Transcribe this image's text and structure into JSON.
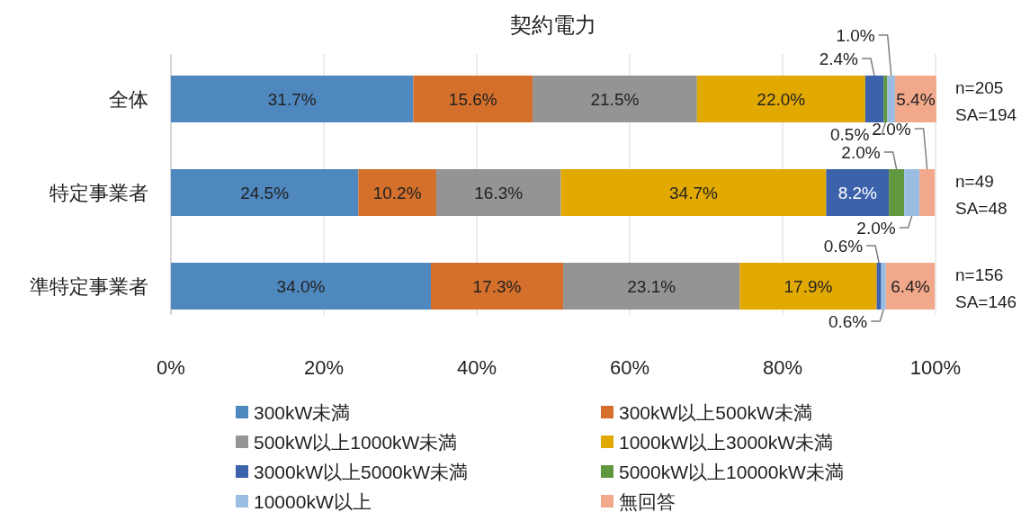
{
  "chart_data": {
    "type": "bar",
    "orientation": "horizontal",
    "stacked": true,
    "title": "契約電力",
    "categories": [
      "全体",
      "特定事業者",
      "準特定事業者"
    ],
    "series": [
      {
        "name": "300kW未満",
        "color": "#4f88bf",
        "values": [
          31.7,
          24.5,
          34.0
        ],
        "value_labels": [
          "31.7%",
          "24.5%",
          "34.0%"
        ]
      },
      {
        "name": "300kW以上500kW未満",
        "color": "#d4702c",
        "values": [
          15.6,
          10.2,
          17.3
        ],
        "value_labels": [
          "15.6%",
          "10.2%",
          "17.3%"
        ]
      },
      {
        "name": "500kW以上1000kW未満",
        "color": "#949494",
        "values": [
          21.5,
          16.3,
          23.1
        ],
        "value_labels": [
          "21.5%",
          "16.3%",
          "23.1%"
        ]
      },
      {
        "name": "1000kW以上3000kW未満",
        "color": "#e2a900",
        "values": [
          22.0,
          34.7,
          17.9
        ],
        "value_labels": [
          "22.0%",
          "34.7%",
          "17.9%"
        ]
      },
      {
        "name": "3000kW以上5000kW未満",
        "color": "#3b62aa",
        "values": [
          2.4,
          8.2,
          0.6
        ],
        "value_labels": [
          "2.4%",
          "8.2%",
          "0.6%"
        ]
      },
      {
        "name": "5000kW以上10000kW未満",
        "color": "#5f983f",
        "values": [
          0.5,
          2.0,
          null
        ],
        "value_labels": [
          "0.5%",
          "2.0%",
          null
        ]
      },
      {
        "name": "10000kW以上",
        "color": "#9bbde2",
        "values": [
          1.0,
          2.0,
          0.6
        ],
        "value_labels": [
          "1.0%",
          "2.0%",
          "0.6%"
        ]
      },
      {
        "name": "無回答",
        "color": "#f2a88b",
        "values": [
          5.4,
          2.0,
          6.4
        ],
        "value_labels": [
          "5.4%",
          "2.0%",
          "6.4%"
        ]
      }
    ],
    "xlim": [
      0,
      100
    ],
    "xticks": [
      {
        "value": 0,
        "label": "0%"
      },
      {
        "value": 20,
        "label": "20%"
      },
      {
        "value": 40,
        "label": "40%"
      },
      {
        "value": 60,
        "label": "60%"
      },
      {
        "value": 80,
        "label": "80%"
      },
      {
        "value": 100,
        "label": "100%"
      }
    ],
    "grid": "x",
    "legend": "bottom",
    "annotations": [
      "n=205",
      "SA=194",
      "n=49",
      "SA=48",
      "n=156",
      "SA=146"
    ]
  }
}
